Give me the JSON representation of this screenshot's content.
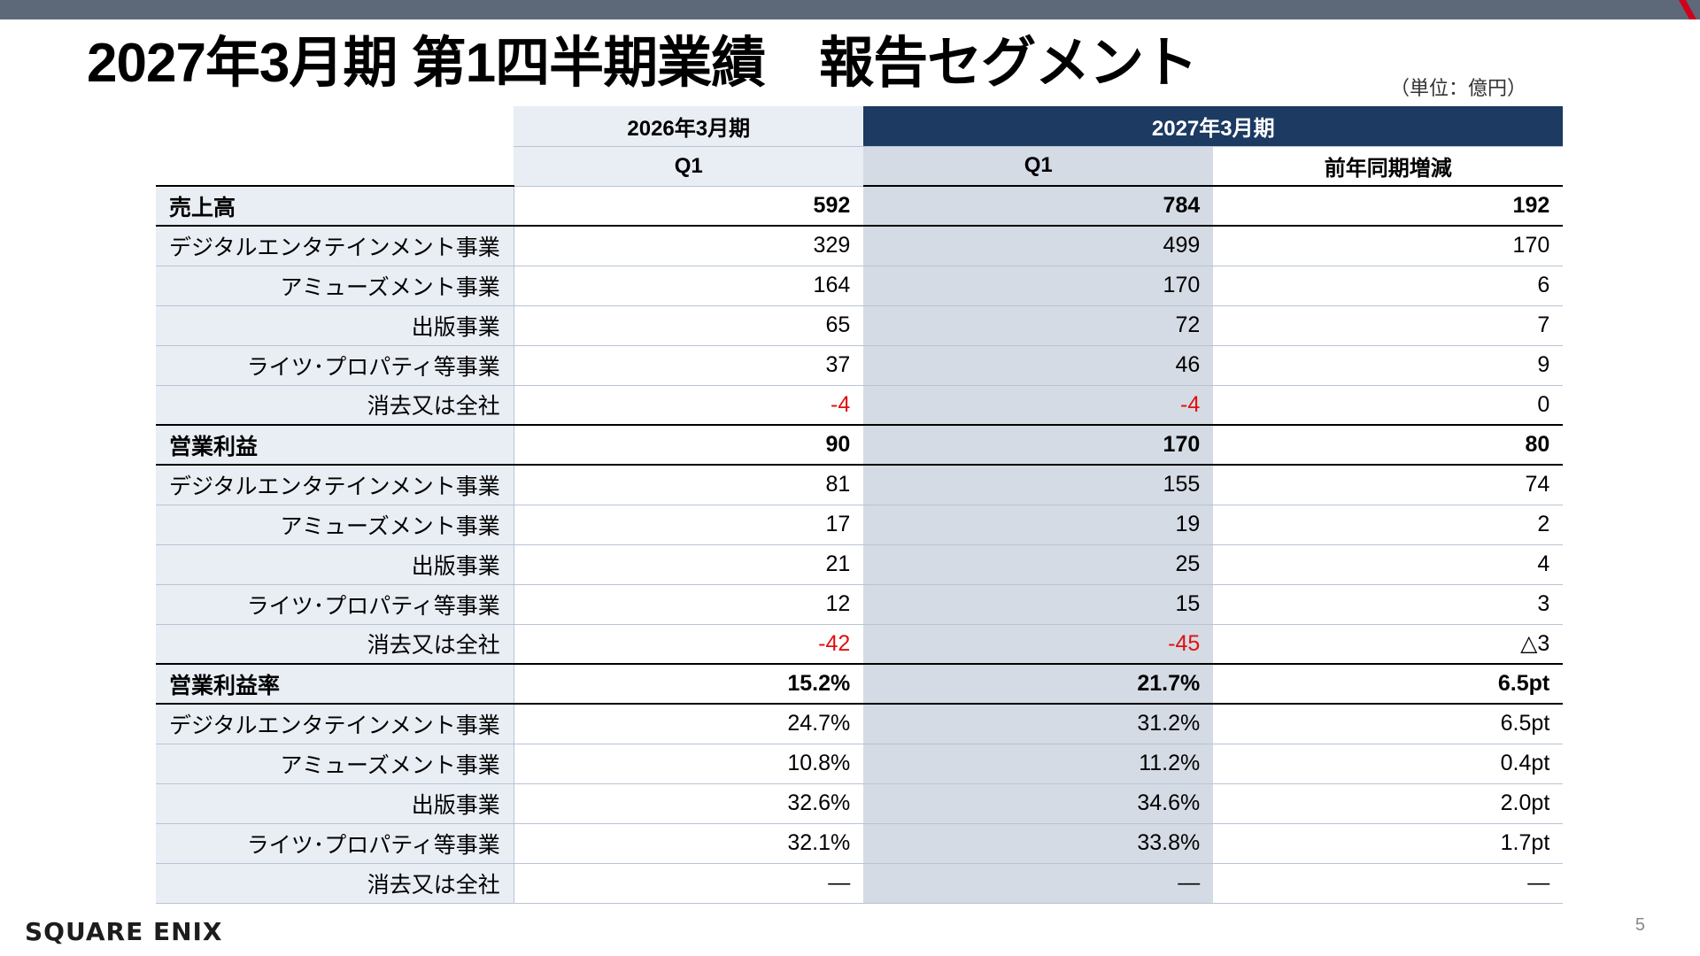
{
  "title": "2027年3月期 第1四半期業績　報告セグメント",
  "unit": "（単位：億円）",
  "page_number": "5",
  "logo": "SQUARE ENIX",
  "colors": {
    "header_dark": "#1c3a62",
    "header_light": "#e9eef5",
    "highlight_column": "#d4dbe4",
    "negative": "#e01010"
  },
  "header": {
    "period_prev": "2026年3月期",
    "period_curr": "2027年3月期",
    "q1_prev": "Q1",
    "q1_curr": "Q1",
    "diff": "前年同期増減"
  },
  "rows": [
    {
      "label": "売上高",
      "v1": "592",
      "v2": "784",
      "v3": "192"
    },
    {
      "label": "デジタルエンタテインメント事業",
      "v1": "329",
      "v2": "499",
      "v3": "170"
    },
    {
      "label": "アミューズメント事業",
      "v1": "164",
      "v2": "170",
      "v3": "6"
    },
    {
      "label": "出版事業",
      "v1": "65",
      "v2": "72",
      "v3": "7"
    },
    {
      "label": "ライツ･プロパティ等事業",
      "v1": "37",
      "v2": "46",
      "v3": "9"
    },
    {
      "label": "消去又は全社",
      "v1": "-4",
      "v2": "-4",
      "v3": "0"
    },
    {
      "label": "営業利益",
      "v1": "90",
      "v2": "170",
      "v3": "80"
    },
    {
      "label": "デジタルエンタテインメント事業",
      "v1": "81",
      "v2": "155",
      "v3": "74"
    },
    {
      "label": "アミューズメント事業",
      "v1": "17",
      "v2": "19",
      "v3": "2"
    },
    {
      "label": "出版事業",
      "v1": "21",
      "v2": "25",
      "v3": "4"
    },
    {
      "label": "ライツ･プロパティ等事業",
      "v1": "12",
      "v2": "15",
      "v3": "3"
    },
    {
      "label": "消去又は全社",
      "v1": "-42",
      "v2": "-45",
      "v3": "△3"
    },
    {
      "label": "営業利益率",
      "v1": "15.2%",
      "v2": "21.7%",
      "v3": "6.5pt"
    },
    {
      "label": "デジタルエンタテインメント事業",
      "v1": "24.7%",
      "v2": "31.2%",
      "v3": "6.5pt"
    },
    {
      "label": "アミューズメント事業",
      "v1": "10.8%",
      "v2": "11.2%",
      "v3": "0.4pt"
    },
    {
      "label": "出版事業",
      "v1": "32.6%",
      "v2": "34.6%",
      "v3": "2.0pt"
    },
    {
      "label": "ライツ･プロパティ等事業",
      "v1": "32.1%",
      "v2": "33.8%",
      "v3": "1.7pt"
    },
    {
      "label": "消去又は全社",
      "v1": "―",
      "v2": "―",
      "v3": "―"
    }
  ]
}
